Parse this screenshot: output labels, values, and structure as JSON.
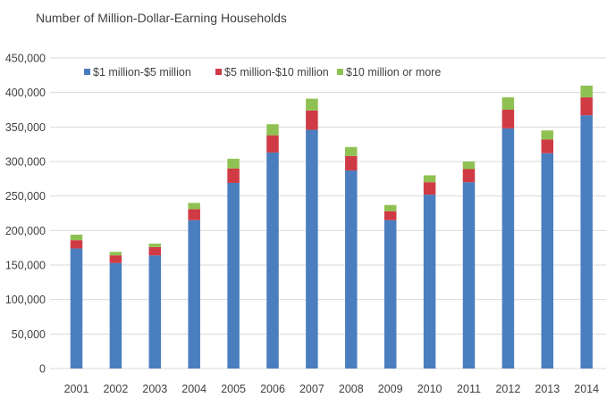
{
  "chart_data": {
    "type": "bar",
    "stacked": true,
    "title": "Number of Million-Dollar-Earning Households",
    "xlabel": "",
    "ylabel": "",
    "ylim": [
      0,
      450000
    ],
    "grid": true,
    "legend_position": "top",
    "yticks": [
      "0",
      "50,000",
      "100,000",
      "150,000",
      "200,000",
      "250,000",
      "300,000",
      "350,000",
      "400,000",
      "450,000"
    ],
    "categories": [
      "2001",
      "2002",
      "2003",
      "2004",
      "2005",
      "2006",
      "2007",
      "2008",
      "2009",
      "2010",
      "2011",
      "2012",
      "2013",
      "2014"
    ],
    "series": [
      {
        "name": "$1 million-$5 million",
        "color": "#4a7ebf",
        "values": [
          174000,
          153000,
          164000,
          215000,
          269000,
          313000,
          346000,
          287000,
          215000,
          252000,
          270000,
          348000,
          312000,
          367000
        ]
      },
      {
        "name": "$5 million-$10 million",
        "color": "#cf3a45",
        "values": [
          12000,
          11000,
          12000,
          16000,
          21000,
          25000,
          28000,
          21000,
          13000,
          18000,
          19000,
          27000,
          20000,
          26000
        ]
      },
      {
        "name": "$10 million or more",
        "color": "#8fc152",
        "values": [
          8000,
          5000,
          5000,
          9000,
          14000,
          16000,
          17000,
          13000,
          9000,
          10000,
          11000,
          18000,
          13000,
          17000
        ]
      }
    ]
  }
}
